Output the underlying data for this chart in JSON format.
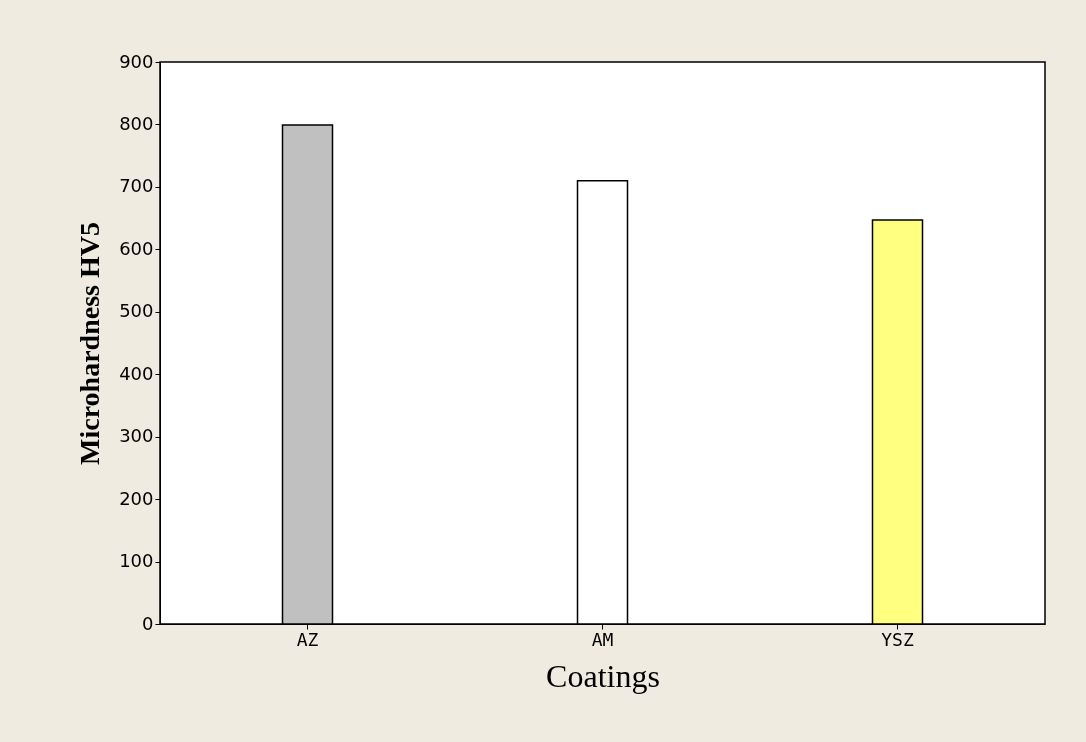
{
  "chart_data": {
    "type": "bar",
    "xlabel": "Coatings",
    "ylabel": "Microhardness HV5",
    "categories": [
      "AZ",
      "AM",
      "YSZ"
    ],
    "values": [
      799,
      710,
      647
    ],
    "colors": [
      "#c0c0c0",
      "#ffffff",
      "#ffff80"
    ],
    "ylim": [
      0,
      900
    ],
    "yticks": [
      0,
      100,
      200,
      300,
      400,
      500,
      600,
      700,
      800,
      900
    ],
    "grid": false,
    "legend": false
  }
}
